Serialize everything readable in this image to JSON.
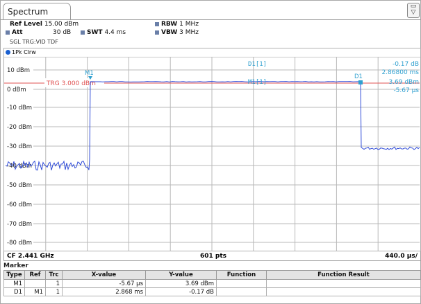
{
  "tab": {
    "title": "Spectrum"
  },
  "header": {
    "ref_level_label": "Ref Level",
    "ref_level_value": "15.00 dBm",
    "att_label": "Att",
    "att_value": "30 dB",
    "swt_label": "SWT",
    "swt_value": "4.4 ms",
    "rbw_label": "RBW",
    "rbw_value": "1 MHz",
    "vbw_label": "VBW",
    "vbw_value": "3 MHz",
    "trigger_line": "SGL TRG:VID TDF"
  },
  "trace": {
    "label": "1Pk Clrw"
  },
  "plot": {
    "y_ticks": [
      "10 dBm",
      "0 dBm",
      "-10 dBm",
      "-20 dBm",
      "-30 dBm",
      "-40 dBm",
      "-50 dBm",
      "-60 dBm",
      "-70 dBm",
      "-80 dBm"
    ],
    "trigger_label": "TRG  3.000 dBm",
    "m1_marker_label": "M1",
    "d1_marker_label": "D1",
    "delta_label": "D1[1]",
    "delta_level": "-0.17 dB",
    "delta_time": "2.86800 ms",
    "m1_readout_label": "M1[1]",
    "m1_level": "3.69 dBm",
    "m1_time": "-5.67 µs"
  },
  "footer": {
    "center": "CF 2.441 GHz",
    "points": "601 pts",
    "span": "440.0 µs/"
  },
  "marker_table": {
    "title": "Marker",
    "headers": [
      "Type",
      "Ref",
      "Trc",
      "X-value",
      "Y-value",
      "Function",
      "Function Result"
    ],
    "rows": [
      [
        "M1",
        "",
        "1",
        "-5.67 µs",
        "3.69 dBm",
        "",
        ""
      ],
      [
        "D1",
        "M1",
        "1",
        "2.868 ms",
        "-0.17 dB",
        "",
        ""
      ]
    ]
  },
  "colors": {
    "trace": "#2f4bd8",
    "trigger_line": "#e05050",
    "marker_text": "#2fa0d0",
    "grid": "#b8b8b8"
  }
}
